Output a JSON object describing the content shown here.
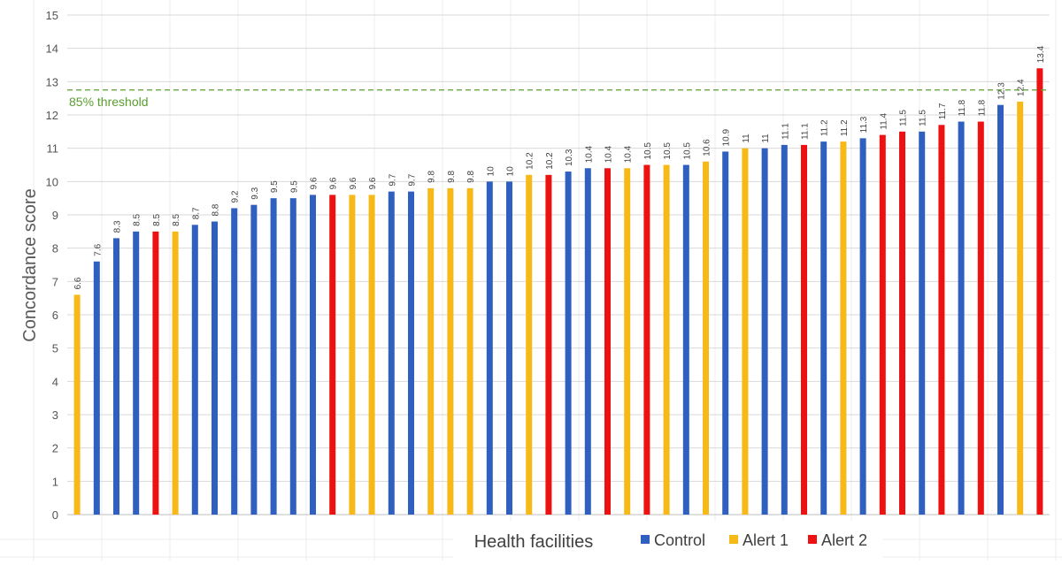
{
  "chart_data": {
    "type": "bar",
    "ylabel": "Concordance score",
    "xlabel": "Health facilities",
    "ylim": [
      0,
      15
    ],
    "yticks": [
      0,
      1,
      2,
      3,
      4,
      5,
      6,
      7,
      8,
      9,
      10,
      11,
      12,
      13,
      14,
      15
    ],
    "grid": true,
    "legend_position": "bottom-right",
    "threshold": {
      "value": 12.75,
      "label": "85% threshold",
      "color": "#5a9e2f",
      "style": "dashed"
    },
    "series": [
      {
        "name": "Control",
        "color": "#2f5fbf"
      },
      {
        "name": "Alert 1",
        "color": "#f7b918"
      },
      {
        "name": "Alert 2",
        "color": "#ee1111"
      }
    ],
    "bars": [
      {
        "value": 6.6,
        "label": "6.6",
        "series": "Alert 1"
      },
      {
        "value": 7.6,
        "label": "7.6",
        "series": "Control"
      },
      {
        "value": 8.3,
        "label": "8.3",
        "series": "Control"
      },
      {
        "value": 8.5,
        "label": "8.5",
        "series": "Control"
      },
      {
        "value": 8.5,
        "label": "8.5",
        "series": "Alert 2"
      },
      {
        "value": 8.5,
        "label": "8.5",
        "series": "Alert 1"
      },
      {
        "value": 8.7,
        "label": "8.7",
        "series": "Control"
      },
      {
        "value": 8.8,
        "label": "8.8",
        "series": "Control"
      },
      {
        "value": 9.2,
        "label": "9.2",
        "series": "Control"
      },
      {
        "value": 9.3,
        "label": "9.3",
        "series": "Control"
      },
      {
        "value": 9.5,
        "label": "9.5",
        "series": "Control"
      },
      {
        "value": 9.5,
        "label": "9.5",
        "series": "Control"
      },
      {
        "value": 9.6,
        "label": "9.6",
        "series": "Control"
      },
      {
        "value": 9.6,
        "label": "9.6",
        "series": "Alert 2"
      },
      {
        "value": 9.6,
        "label": "9.6",
        "series": "Alert 1"
      },
      {
        "value": 9.6,
        "label": "9.6",
        "series": "Alert 1"
      },
      {
        "value": 9.7,
        "label": "9.7",
        "series": "Control"
      },
      {
        "value": 9.7,
        "label": "9.7",
        "series": "Control"
      },
      {
        "value": 9.8,
        "label": "9.8",
        "series": "Alert 1"
      },
      {
        "value": 9.8,
        "label": "9.8",
        "series": "Alert 1"
      },
      {
        "value": 9.8,
        "label": "9.8",
        "series": "Alert 1"
      },
      {
        "value": 10,
        "label": "10",
        "series": "Control"
      },
      {
        "value": 10,
        "label": "10",
        "series": "Control"
      },
      {
        "value": 10.2,
        "label": "10.2",
        "series": "Alert 1"
      },
      {
        "value": 10.2,
        "label": "10.2",
        "series": "Alert 2"
      },
      {
        "value": 10.3,
        "label": "10.3",
        "series": "Control"
      },
      {
        "value": 10.4,
        "label": "10.4",
        "series": "Control"
      },
      {
        "value": 10.4,
        "label": "10.4",
        "series": "Alert 2"
      },
      {
        "value": 10.4,
        "label": "10.4",
        "series": "Alert 1"
      },
      {
        "value": 10.5,
        "label": "10.5",
        "series": "Alert 2"
      },
      {
        "value": 10.5,
        "label": "10.5",
        "series": "Alert 1"
      },
      {
        "value": 10.5,
        "label": "10.5",
        "series": "Control"
      },
      {
        "value": 10.6,
        "label": "10.6",
        "series": "Alert 1"
      },
      {
        "value": 10.9,
        "label": "10.9",
        "series": "Control"
      },
      {
        "value": 11,
        "label": "11",
        "series": "Alert 1"
      },
      {
        "value": 11,
        "label": "11",
        "series": "Control"
      },
      {
        "value": 11.1,
        "label": "11.1",
        "series": "Control"
      },
      {
        "value": 11.1,
        "label": "11.1",
        "series": "Alert 2"
      },
      {
        "value": 11.2,
        "label": "11.2",
        "series": "Control"
      },
      {
        "value": 11.2,
        "label": "11.2",
        "series": "Alert 1"
      },
      {
        "value": 11.3,
        "label": "11.3",
        "series": "Control"
      },
      {
        "value": 11.4,
        "label": "11.4",
        "series": "Alert 2"
      },
      {
        "value": 11.5,
        "label": "11.5",
        "series": "Alert 2"
      },
      {
        "value": 11.5,
        "label": "11.5",
        "series": "Control"
      },
      {
        "value": 11.7,
        "label": "11.7",
        "series": "Alert 2"
      },
      {
        "value": 11.8,
        "label": "11.8",
        "series": "Control"
      },
      {
        "value": 11.8,
        "label": "11.8",
        "series": "Alert 2"
      },
      {
        "value": 12.3,
        "label": "12.3",
        "series": "Control"
      },
      {
        "value": 12.4,
        "label": "12.4",
        "series": "Alert 1"
      },
      {
        "value": 13.4,
        "label": "13.4",
        "series": "Alert 2"
      }
    ]
  }
}
